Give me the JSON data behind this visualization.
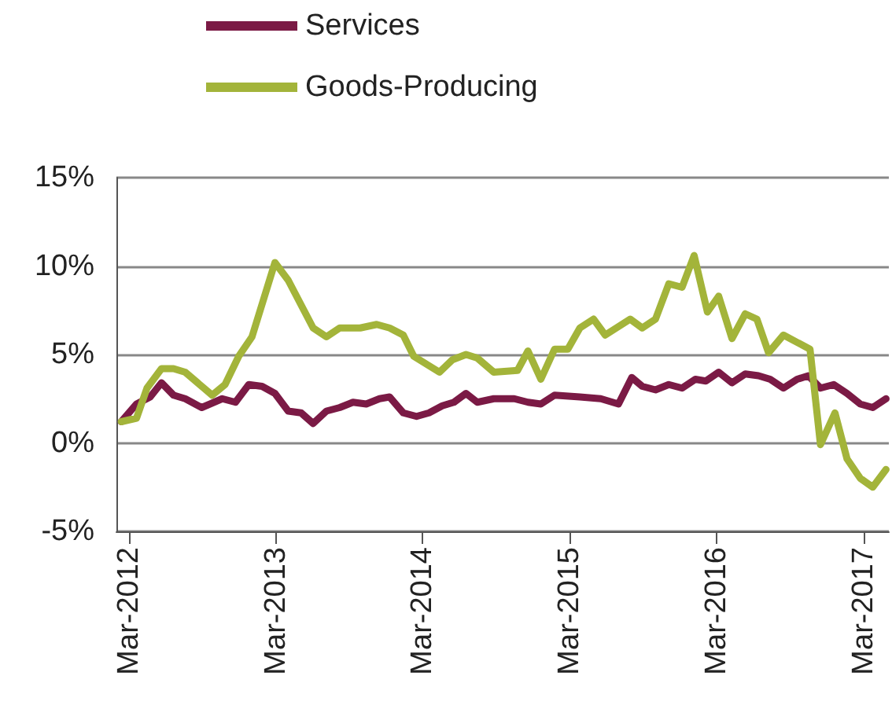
{
  "chart_data": {
    "type": "line",
    "legend": "top left",
    "grid": "y",
    "xlim": [
      "2012-01-30",
      "2017-05-03"
    ],
    "xticks": [
      {
        "value": "2012-03-01",
        "label": "Mar-2012"
      },
      {
        "value": "2013-03-01",
        "label": "Mar-2013"
      },
      {
        "value": "2014-03-01",
        "label": "Mar-2014"
      },
      {
        "value": "2015-03-01",
        "label": "Mar-2015"
      },
      {
        "value": "2016-03-01",
        "label": "Mar-2016"
      },
      {
        "value": "2017-03-01",
        "label": "Mar-2017"
      }
    ],
    "ylim": [
      -5,
      15
    ],
    "yticks": [
      {
        "value": -5,
        "label": "-5%"
      },
      {
        "value": 0,
        "label": "0%"
      },
      {
        "value": 5,
        "label": "5%"
      },
      {
        "value": 10,
        "label": "10%"
      },
      {
        "value": 15,
        "label": "15%"
      }
    ],
    "series": [
      {
        "name": "Services",
        "color": "#7b1a45",
        "x": [
          "2012-02-11",
          "2012-03-20",
          "2012-04-23",
          "2012-05-21",
          "2012-06-20",
          "2012-07-19",
          "2012-08-29",
          "2012-10-19",
          "2012-11-21",
          "2012-12-24",
          "2013-01-26",
          "2013-02-27",
          "2013-04-01",
          "2013-05-03",
          "2013-06-02",
          "2013-07-05",
          "2013-08-07",
          "2013-09-09",
          "2013-10-12",
          "2013-11-14",
          "2013-12-09",
          "2014-01-12",
          "2014-02-14",
          "2014-03-17",
          "2014-04-19",
          "2014-05-18",
          "2014-06-17",
          "2014-07-15",
          "2014-08-25",
          "2014-10-15",
          "2014-11-18",
          "2014-12-20",
          "2015-01-23",
          "2015-03-27",
          "2015-05-18",
          "2015-07-01",
          "2015-08-03",
          "2015-08-29",
          "2015-10-01",
          "2015-11-03",
          "2015-12-06",
          "2016-01-08",
          "2016-02-03",
          "2016-03-06",
          "2016-04-08",
          "2016-05-11",
          "2016-06-13",
          "2016-07-12",
          "2016-08-14",
          "2016-09-17",
          "2016-10-15",
          "2016-11-14",
          "2016-12-17",
          "2017-01-19",
          "2017-02-21",
          "2017-03-24",
          "2017-04-26"
        ],
        "values": [
          1.2,
          2.2,
          2.6,
          3.4,
          2.7,
          2.5,
          2.0,
          2.5,
          2.3,
          3.3,
          3.2,
          2.8,
          1.8,
          1.7,
          1.1,
          1.8,
          2.0,
          2.3,
          2.2,
          2.5,
          2.6,
          1.7,
          1.5,
          1.7,
          2.1,
          2.3,
          2.8,
          2.3,
          2.5,
          2.5,
          2.3,
          2.2,
          2.7,
          2.6,
          2.5,
          2.2,
          3.7,
          3.2,
          3.0,
          3.3,
          3.1,
          3.6,
          3.5,
          4.0,
          3.4,
          3.9,
          3.8,
          3.6,
          3.1,
          3.6,
          3.8,
          3.1,
          3.3,
          2.8,
          2.2,
          2.0,
          2.5
        ]
      },
      {
        "name": "Goods-Producing",
        "color": "#a3b43a",
        "x": [
          "2012-02-11",
          "2012-03-20",
          "2012-04-15",
          "2012-05-21",
          "2012-06-20",
          "2012-07-19",
          "2012-09-24",
          "2012-10-26",
          "2012-11-29",
          "2013-01-01",
          "2013-02-27",
          "2013-04-01",
          "2013-06-02",
          "2013-07-05",
          "2013-08-07",
          "2013-09-27",
          "2013-11-07",
          "2013-12-09",
          "2014-01-12",
          "2014-02-07",
          "2014-04-12",
          "2014-05-14",
          "2014-06-17",
          "2014-07-15",
          "2014-08-25",
          "2014-10-23",
          "2014-11-18",
          "2014-12-20",
          "2015-01-23",
          "2015-02-25",
          "2015-03-27",
          "2015-04-30",
          "2015-05-29",
          "2015-07-30",
          "2015-08-29",
          "2015-10-01",
          "2015-11-03",
          "2015-12-06",
          "2016-01-05",
          "2016-02-07",
          "2016-03-06",
          "2016-04-08",
          "2016-05-11",
          "2016-06-09",
          "2016-07-08",
          "2016-08-14",
          "2016-10-19",
          "2016-11-14",
          "2016-12-20",
          "2017-01-19",
          "2017-02-21",
          "2017-03-24",
          "2017-04-26"
        ],
        "values": [
          1.2,
          1.4,
          3.1,
          4.2,
          4.2,
          4.0,
          2.7,
          3.3,
          4.9,
          6.0,
          10.2,
          9.2,
          6.5,
          6.0,
          6.5,
          6.5,
          6.7,
          6.5,
          6.1,
          4.9,
          4.0,
          4.7,
          5.0,
          4.8,
          4.0,
          4.1,
          5.2,
          3.6,
          5.3,
          5.3,
          6.5,
          7.0,
          6.1,
          7.0,
          6.5,
          7.0,
          9.0,
          8.8,
          10.6,
          7.4,
          8.3,
          5.9,
          7.3,
          7.0,
          5.1,
          6.1,
          5.3,
          -0.1,
          1.7,
          -0.9,
          -2.0,
          -2.5,
          -1.5
        ]
      }
    ]
  }
}
